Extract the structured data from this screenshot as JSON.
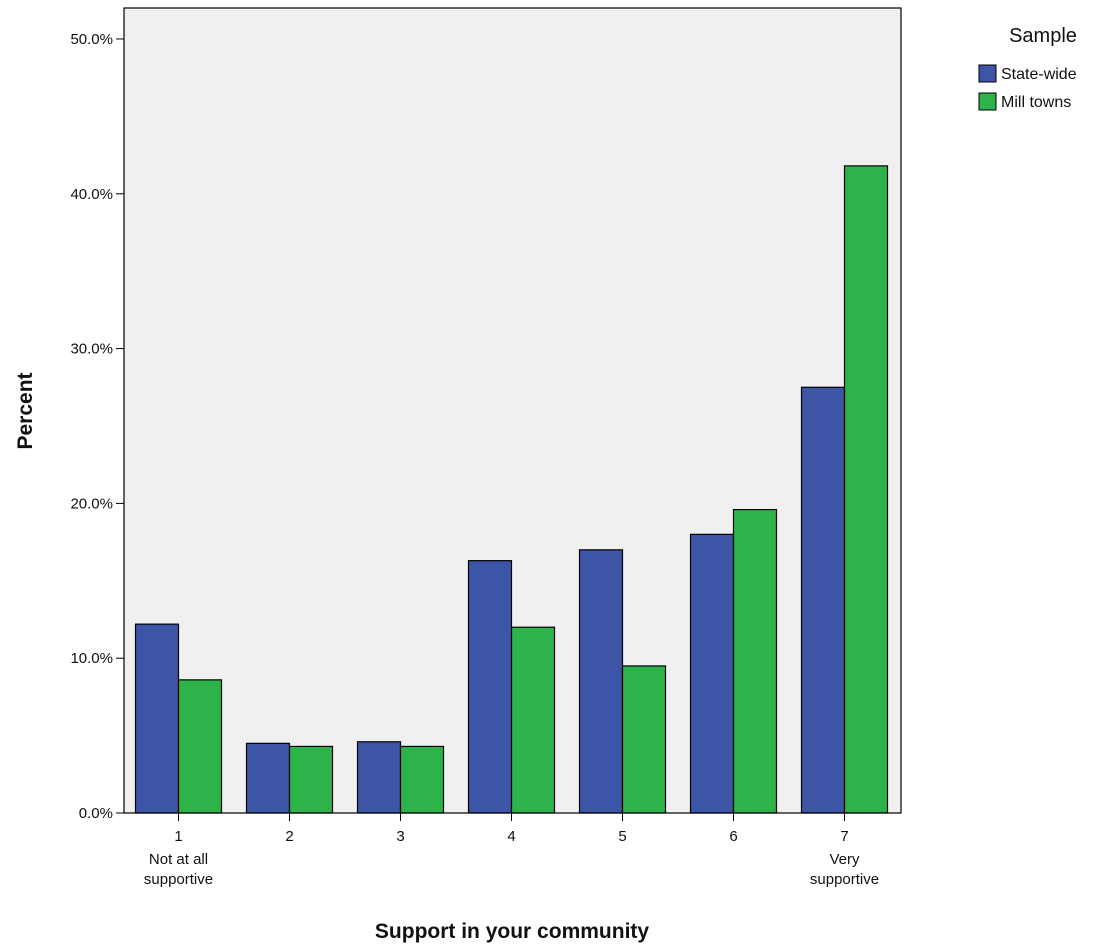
{
  "chart_data": {
    "type": "bar",
    "title": "",
    "xlabel": "Support in your community",
    "ylabel": "Percent",
    "categories": [
      "1",
      "2",
      "3",
      "4",
      "5",
      "6",
      "7"
    ],
    "category_sublabels": [
      [
        "Not at all",
        "supportive"
      ],
      [],
      [],
      [],
      [],
      [],
      [
        "Very",
        "supportive"
      ]
    ],
    "series": [
      {
        "name": "State-wide",
        "color": "#3d55a6",
        "values": [
          12.2,
          4.5,
          4.6,
          16.3,
          17.0,
          18.0,
          27.5
        ]
      },
      {
        "name": "Mill towns",
        "color": "#2db34a",
        "values": [
          8.6,
          4.3,
          4.3,
          12.0,
          9.5,
          19.6,
          41.8
        ]
      }
    ],
    "ylim": [
      0,
      52
    ],
    "yticks": [
      0,
      10,
      20,
      30,
      40,
      50
    ],
    "ytick_labels": [
      "0.0%",
      "10.0%",
      "20.0%",
      "30.0%",
      "40.0%",
      "50.0%"
    ],
    "legend": {
      "title": "Sample",
      "position": "top-right, outside plot"
    },
    "grid": false,
    "plot_background": "#f0f0f0"
  }
}
